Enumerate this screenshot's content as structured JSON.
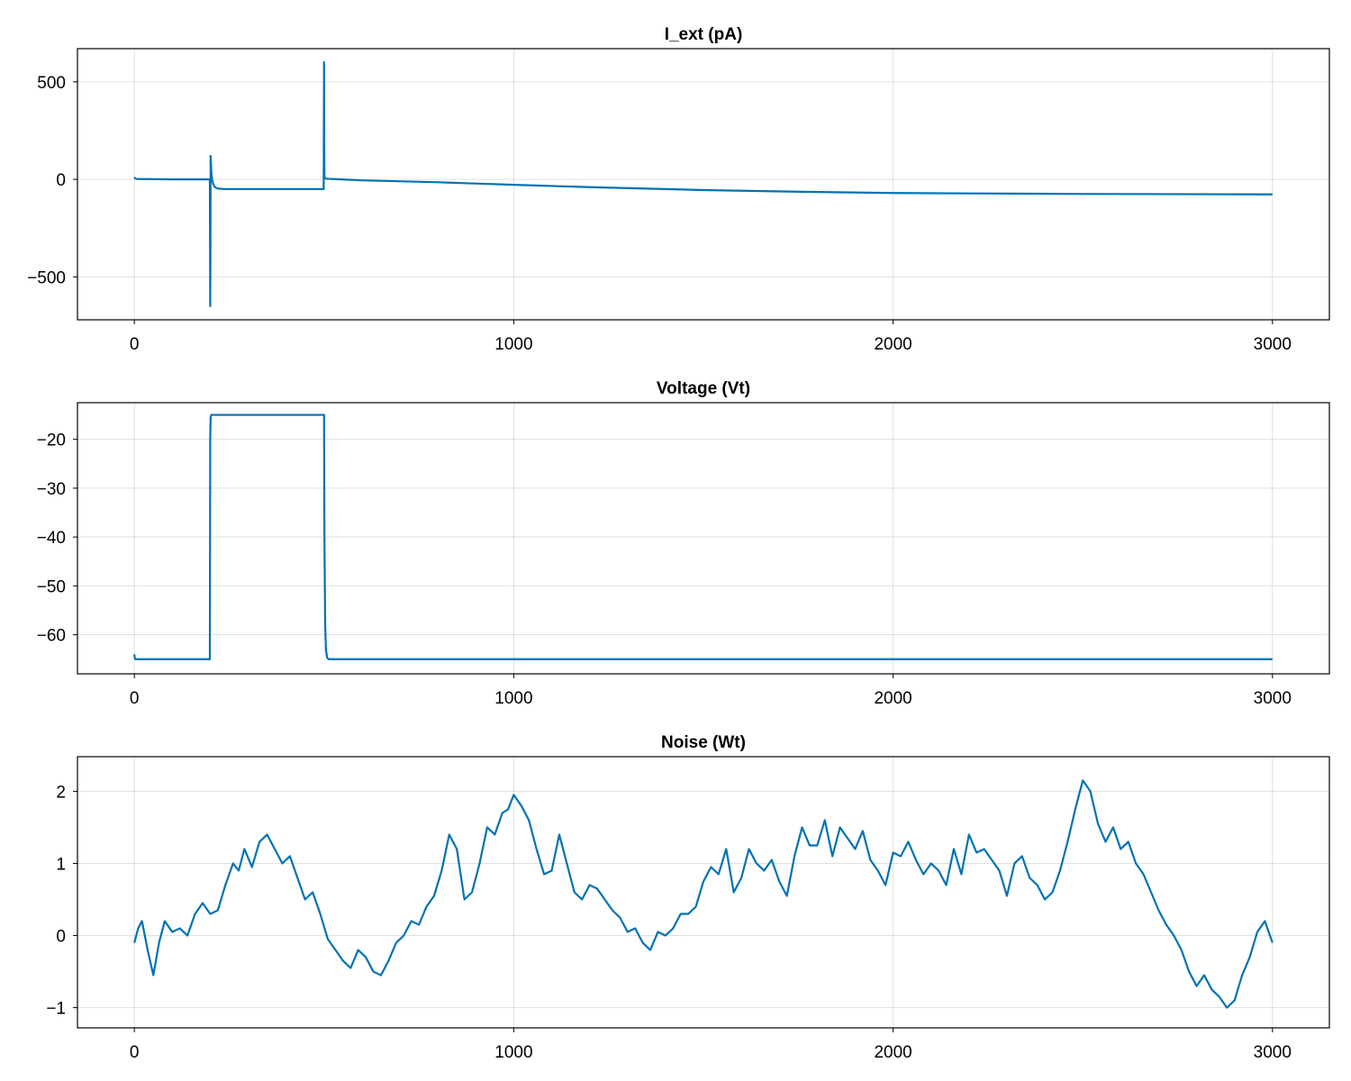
{
  "chart_data": [
    {
      "type": "line",
      "title": "I_ext (pA)",
      "xlabel": "",
      "ylabel": "",
      "xlim": [
        -150,
        3150
      ],
      "ylim": [
        -720,
        670
      ],
      "xticks": [
        0,
        1000,
        2000,
        3000
      ],
      "xtick_labels": [
        "0",
        "1000",
        "2000",
        "3000"
      ],
      "yticks": [
        -500,
        0,
        500
      ],
      "ytick_labels": [
        "−500",
        "0",
        "500"
      ],
      "grid": true,
      "series": [
        {
          "color": "#0072b2",
          "x": [
            0,
            1,
            5,
            50,
            100,
            150,
            199,
            200,
            200.5,
            201,
            202,
            203,
            205,
            208,
            212,
            218,
            225,
            240,
            300,
            400,
            499,
            500,
            500.5,
            501,
            502,
            505,
            510,
            520,
            600,
            800,
            1000,
            1200,
            1500,
            1800,
            2000,
            2200,
            2500,
            2800,
            3000
          ],
          "y": [
            5,
            8,
            2,
            1,
            0,
            0,
            0,
            -650,
            -400,
            120,
            80,
            30,
            0,
            -25,
            -40,
            -46,
            -48,
            -50,
            -50,
            -50,
            -50,
            600,
            200,
            20,
            8,
            4,
            3,
            2,
            -5,
            -15,
            -28,
            -40,
            -55,
            -65,
            -70,
            -72,
            -75,
            -76,
            -77
          ]
        }
      ]
    },
    {
      "type": "line",
      "title": "Voltage (Vt)",
      "xlabel": "",
      "ylabel": "",
      "xlim": [
        -150,
        3150
      ],
      "ylim": [
        -68,
        -12.5
      ],
      "xticks": [
        0,
        1000,
        2000,
        3000
      ],
      "xtick_labels": [
        "0",
        "1000",
        "2000",
        "3000"
      ],
      "yticks": [
        -60,
        -50,
        -40,
        -30,
        -20
      ],
      "ytick_labels": [
        "−60",
        "−50",
        "−40",
        "−30",
        "−20"
      ],
      "grid": true,
      "series": [
        {
          "color": "#0072b2",
          "x": [
            0,
            1,
            3,
            5,
            50,
            100,
            150,
            199,
            200,
            201,
            202,
            203,
            205,
            210,
            220,
            300,
            400,
            499,
            500,
            501,
            503,
            505,
            508,
            512,
            520,
            600,
            1000,
            2000,
            3000
          ],
          "y": [
            -64,
            -64.8,
            -65,
            -65,
            -65,
            -65,
            -65,
            -65,
            -20,
            -15.5,
            -15.2,
            -15,
            -15,
            -15,
            -15,
            -15,
            -15,
            -15,
            -15,
            -40,
            -58,
            -63,
            -64.7,
            -65,
            -65,
            -65,
            -65,
            -65,
            -65
          ]
        }
      ]
    },
    {
      "type": "line",
      "title": "Noise (Wt)",
      "xlabel": "",
      "ylabel": "",
      "xlim": [
        -150,
        3150
      ],
      "ylim": [
        -1.28,
        2.48
      ],
      "xticks": [
        0,
        1000,
        2000,
        3000
      ],
      "xtick_labels": [
        "0",
        "1000",
        "2000",
        "3000"
      ],
      "yticks": [
        -1,
        0,
        1,
        2
      ],
      "ytick_labels": [
        "−1",
        "0",
        "1",
        "2"
      ],
      "grid": true,
      "series": [
        {
          "color": "#0072b2",
          "x": [
            0,
            10,
            20,
            35,
            50,
            65,
            80,
            100,
            120,
            140,
            160,
            180,
            200,
            220,
            240,
            260,
            275,
            290,
            310,
            330,
            350,
            370,
            390,
            410,
            430,
            450,
            470,
            490,
            510,
            530,
            550,
            570,
            590,
            610,
            630,
            650,
            670,
            690,
            710,
            730,
            750,
            770,
            790,
            810,
            830,
            850,
            870,
            890,
            910,
            930,
            950,
            970,
            985,
            1000,
            1020,
            1040,
            1060,
            1080,
            1100,
            1120,
            1140,
            1160,
            1180,
            1200,
            1220,
            1240,
            1260,
            1280,
            1300,
            1320,
            1340,
            1360,
            1380,
            1400,
            1420,
            1440,
            1460,
            1480,
            1500,
            1520,
            1540,
            1560,
            1580,
            1600,
            1620,
            1640,
            1660,
            1680,
            1700,
            1720,
            1740,
            1760,
            1780,
            1800,
            1820,
            1840,
            1860,
            1880,
            1900,
            1920,
            1940,
            1960,
            1980,
            2000,
            2020,
            2040,
            2060,
            2080,
            2100,
            2120,
            2140,
            2160,
            2180,
            2200,
            2220,
            2240,
            2260,
            2280,
            2300,
            2320,
            2340,
            2360,
            2380,
            2400,
            2420,
            2440,
            2460,
            2480,
            2500,
            2520,
            2540,
            2560,
            2580,
            2600,
            2620,
            2640,
            2660,
            2680,
            2700,
            2720,
            2740,
            2760,
            2780,
            2800,
            2820,
            2840,
            2860,
            2880,
            2900,
            2920,
            2940,
            2960,
            2980,
            3000
          ],
          "y": [
            -0.1,
            0.1,
            0.2,
            -0.2,
            -0.55,
            -0.1,
            0.2,
            0.05,
            0.1,
            0.0,
            0.3,
            0.45,
            0.3,
            0.35,
            0.7,
            1.0,
            0.9,
            1.2,
            0.95,
            1.3,
            1.4,
            1.2,
            1.0,
            1.1,
            0.8,
            0.5,
            0.6,
            0.3,
            -0.05,
            -0.2,
            -0.35,
            -0.45,
            -0.2,
            -0.3,
            -0.5,
            -0.55,
            -0.35,
            -0.1,
            0.0,
            0.2,
            0.15,
            0.4,
            0.55,
            0.9,
            1.4,
            1.2,
            0.5,
            0.6,
            1.0,
            1.5,
            1.4,
            1.7,
            1.75,
            1.95,
            1.8,
            1.6,
            1.2,
            0.85,
            0.9,
            1.4,
            1.0,
            0.6,
            0.5,
            0.7,
            0.65,
            0.5,
            0.35,
            0.25,
            0.05,
            0.1,
            -0.1,
            -0.2,
            0.05,
            0.0,
            0.1,
            0.3,
            0.3,
            0.4,
            0.75,
            0.95,
            0.85,
            1.2,
            0.6,
            0.8,
            1.2,
            1.0,
            0.9,
            1.05,
            0.75,
            0.55,
            1.1,
            1.5,
            1.25,
            1.25,
            1.6,
            1.1,
            1.5,
            1.35,
            1.2,
            1.45,
            1.05,
            0.9,
            0.7,
            1.15,
            1.1,
            1.3,
            1.05,
            0.85,
            1.0,
            0.9,
            0.7,
            1.2,
            0.85,
            1.4,
            1.15,
            1.2,
            1.05,
            0.9,
            0.55,
            1.0,
            1.1,
            0.8,
            0.7,
            0.5,
            0.6,
            0.9,
            1.3,
            1.75,
            2.15,
            2.0,
            1.55,
            1.3,
            1.5,
            1.2,
            1.3,
            1.0,
            0.85,
            0.6,
            0.35,
            0.15,
            0.0,
            -0.2,
            -0.5,
            -0.7,
            -0.55,
            -0.75,
            -0.85,
            -1.0,
            -0.9,
            -0.55,
            -0.3,
            0.05,
            0.2,
            -0.1
          ]
        }
      ]
    }
  ]
}
